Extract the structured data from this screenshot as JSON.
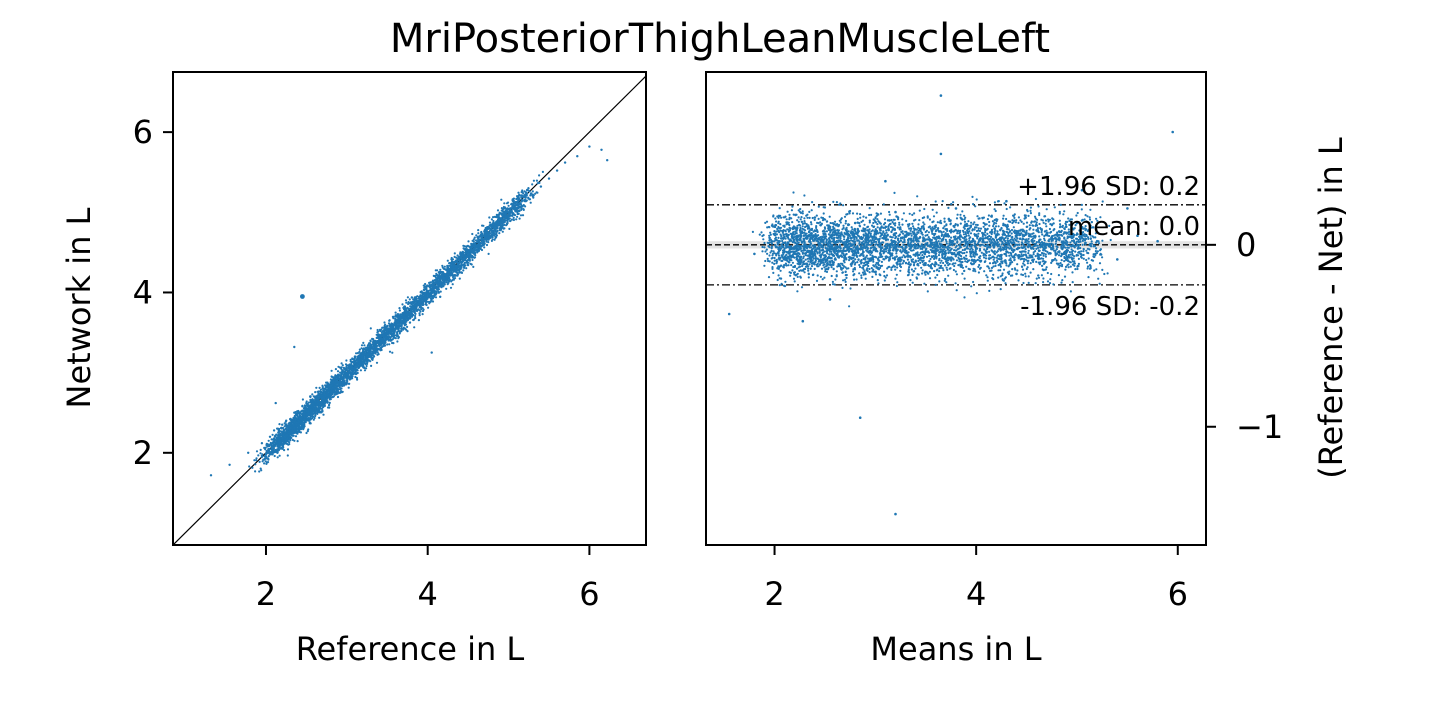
{
  "chart_data": [
    {
      "type": "scatter",
      "title": "MriPosteriorThighLeanMuscleLeft",
      "xlabel": "Reference in L",
      "ylabel": "Network in L",
      "xlim": [
        0.85,
        6.7
      ],
      "ylim": [
        0.85,
        6.75
      ],
      "xticks": [
        2,
        4,
        6
      ],
      "yticks": [
        2,
        4,
        6
      ],
      "identity_line": true,
      "point_color": "#1f77b4",
      "series": [
        {
          "values_description_only": false,
          "x": [
            1.32,
            1.55,
            1.78,
            1.95,
            2.05,
            2.1,
            2.15,
            2.2,
            2.25,
            2.3,
            2.35,
            2.4,
            2.45,
            2.5,
            2.55,
            2.6,
            2.65,
            2.7,
            2.75,
            2.8,
            2.85,
            2.9,
            2.95,
            3.0,
            3.05,
            3.1,
            3.15,
            3.2,
            3.25,
            3.3,
            3.35,
            3.4,
            3.45,
            3.5,
            3.55,
            3.6,
            3.65,
            3.7,
            3.75,
            3.8,
            3.85,
            3.9,
            3.95,
            4.0,
            4.05,
            4.1,
            4.15,
            4.2,
            4.25,
            4.3,
            4.35,
            4.4,
            4.45,
            4.5,
            4.55,
            4.6,
            4.65,
            4.7,
            4.75,
            4.8,
            4.85,
            4.9,
            4.95,
            5.0,
            5.1,
            5.2,
            5.3,
            5.4,
            5.5,
            5.6,
            5.7,
            5.85,
            6.0,
            6.15,
            6.22,
            2.45,
            2.35,
            4.05,
            2.12
          ],
          "y": [
            1.72,
            1.85,
            2.0,
            2.12,
            2.2,
            2.28,
            2.3,
            2.35,
            2.4,
            2.42,
            2.5,
            2.52,
            2.58,
            2.62,
            2.66,
            2.7,
            2.74,
            2.8,
            2.84,
            2.88,
            2.93,
            2.97,
            3.02,
            3.06,
            3.1,
            3.15,
            3.2,
            3.24,
            3.29,
            3.33,
            3.38,
            3.42,
            3.47,
            3.52,
            3.56,
            3.6,
            3.66,
            3.7,
            3.74,
            3.8,
            3.84,
            3.88,
            3.93,
            3.98,
            4.03,
            4.08,
            4.12,
            4.18,
            4.22,
            4.28,
            4.33,
            4.38,
            4.42,
            4.48,
            4.52,
            4.56,
            4.62,
            4.66,
            4.71,
            4.76,
            4.8,
            4.86,
            4.9,
            4.95,
            5.05,
            5.14,
            5.22,
            5.32,
            5.42,
            5.52,
            5.62,
            5.7,
            5.82,
            5.78,
            5.65,
            3.95,
            3.32,
            3.25,
            2.62
          ]
        }
      ]
    },
    {
      "type": "scatter",
      "xlabel": "Means in L",
      "ylabel": "(Reference - Net) in L",
      "xlim": [
        1.32,
        6.28
      ],
      "ylim": [
        -1.65,
        0.95
      ],
      "xticks": [
        2,
        4,
        6
      ],
      "yticks": [
        0,
        -1
      ],
      "ytick_labels": [
        "0",
        "−1"
      ],
      "yaxis_side": "right",
      "point_color": "#1f77b4",
      "lines": [
        {
          "y": 0.22,
          "style": "dashdot",
          "label": "+1.96 SD: 0.2"
        },
        {
          "y": 0.0,
          "style": "dashed",
          "label": "mean: 0.0"
        },
        {
          "y": -0.22,
          "style": "dashdot",
          "label": "-1.96 SD: -0.2"
        }
      ],
      "band": [
        -0.02,
        0.02
      ],
      "series": [
        {
          "x": [
            1.55,
            1.8,
            2.0,
            2.2,
            2.4,
            2.6,
            2.8,
            3.0,
            3.2,
            3.4,
            3.6,
            3.8,
            4.0,
            4.2,
            4.4,
            4.6,
            4.8,
            5.0,
            5.2,
            5.4,
            5.6,
            5.8,
            5.95,
            3.65,
            3.65,
            2.85,
            3.2,
            2.28,
            2.55,
            3.1,
            4.3,
            5.05,
            5.5
          ],
          "y": [
            -0.38,
            -0.05,
            0.1,
            -0.12,
            0.15,
            -0.08,
            0.12,
            -0.15,
            0.18,
            0.05,
            -0.1,
            0.2,
            -0.02,
            0.14,
            -0.16,
            0.08,
            -0.05,
            0.12,
            0.02,
            -0.08,
            0.05,
            0.02,
            0.62,
            0.82,
            0.5,
            -0.95,
            -1.48,
            -0.42,
            -0.3,
            0.35,
            0.24,
            0.3,
            0.2
          ]
        }
      ]
    }
  ]
}
